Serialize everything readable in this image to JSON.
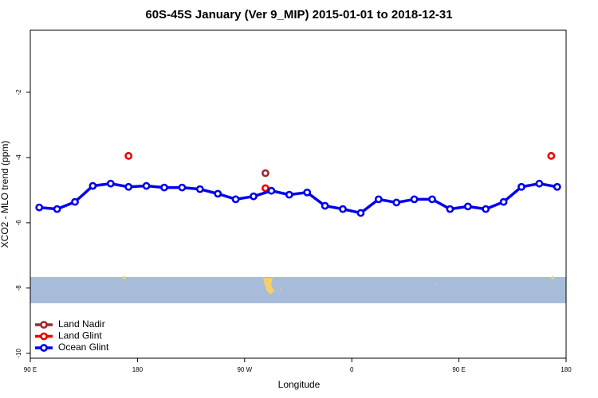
{
  "chart_data": {
    "type": "line",
    "title": "60S-45S January (Ver 9_MIP)   2015-01-01 to 2018-12-31",
    "x_label": "Longitude",
    "y_label": "XCO2 - MLO trend (ppm)",
    "xlim": [
      90,
      540
    ],
    "xticks": [
      {
        "value": 90,
        "label": "90 E"
      },
      {
        "value": 180,
        "label": "180"
      },
      {
        "value": 270,
        "label": "90 W"
      },
      {
        "value": 360,
        "label": "0"
      },
      {
        "value": 450,
        "label": "90 E"
      },
      {
        "value": 540,
        "label": "180"
      }
    ],
    "ylim": [
      -10.15,
      -0.1
    ],
    "yticks": [
      -10,
      -8,
      -6,
      -4,
      -2
    ],
    "legend": "bottom-left",
    "series": [
      {
        "name": "Land Nadir",
        "color": "#9b2a2f",
        "line": false,
        "x": [
          287.5
        ],
        "values": [
          -4.48
        ]
      },
      {
        "name": "Land Glint",
        "color": "#ee0000",
        "line": false,
        "x": [
          172.5,
          287.5,
          527.5
        ],
        "values": [
          -3.95,
          -4.94,
          -3.95
        ]
      },
      {
        "name": "Ocean Glint",
        "color": "#0000ee",
        "line": true,
        "x": [
          97.5,
          112.5,
          127.5,
          142.5,
          157.5,
          172.5,
          187.5,
          202.5,
          217.5,
          232.5,
          247.5,
          262.5,
          277.5,
          292.5,
          307.5,
          322.5,
          337.5,
          352.5,
          367.5,
          382.5,
          397.5,
          412.5,
          427.5,
          442.5,
          457.5,
          472.5,
          487.5,
          502.5,
          517.5,
          532.5
        ],
        "values": [
          -5.53,
          -5.58,
          -5.36,
          -4.87,
          -4.8,
          -4.9,
          -4.87,
          -4.92,
          -4.92,
          -4.97,
          -5.11,
          -5.28,
          -5.19,
          -5.02,
          -5.14,
          -5.07,
          -5.48,
          -5.58,
          -5.7,
          -5.28,
          -5.38,
          -5.28,
          -5.28,
          -5.58,
          -5.5,
          -5.58,
          -5.36,
          -4.9,
          -4.8,
          -4.9
        ]
      }
    ]
  }
}
